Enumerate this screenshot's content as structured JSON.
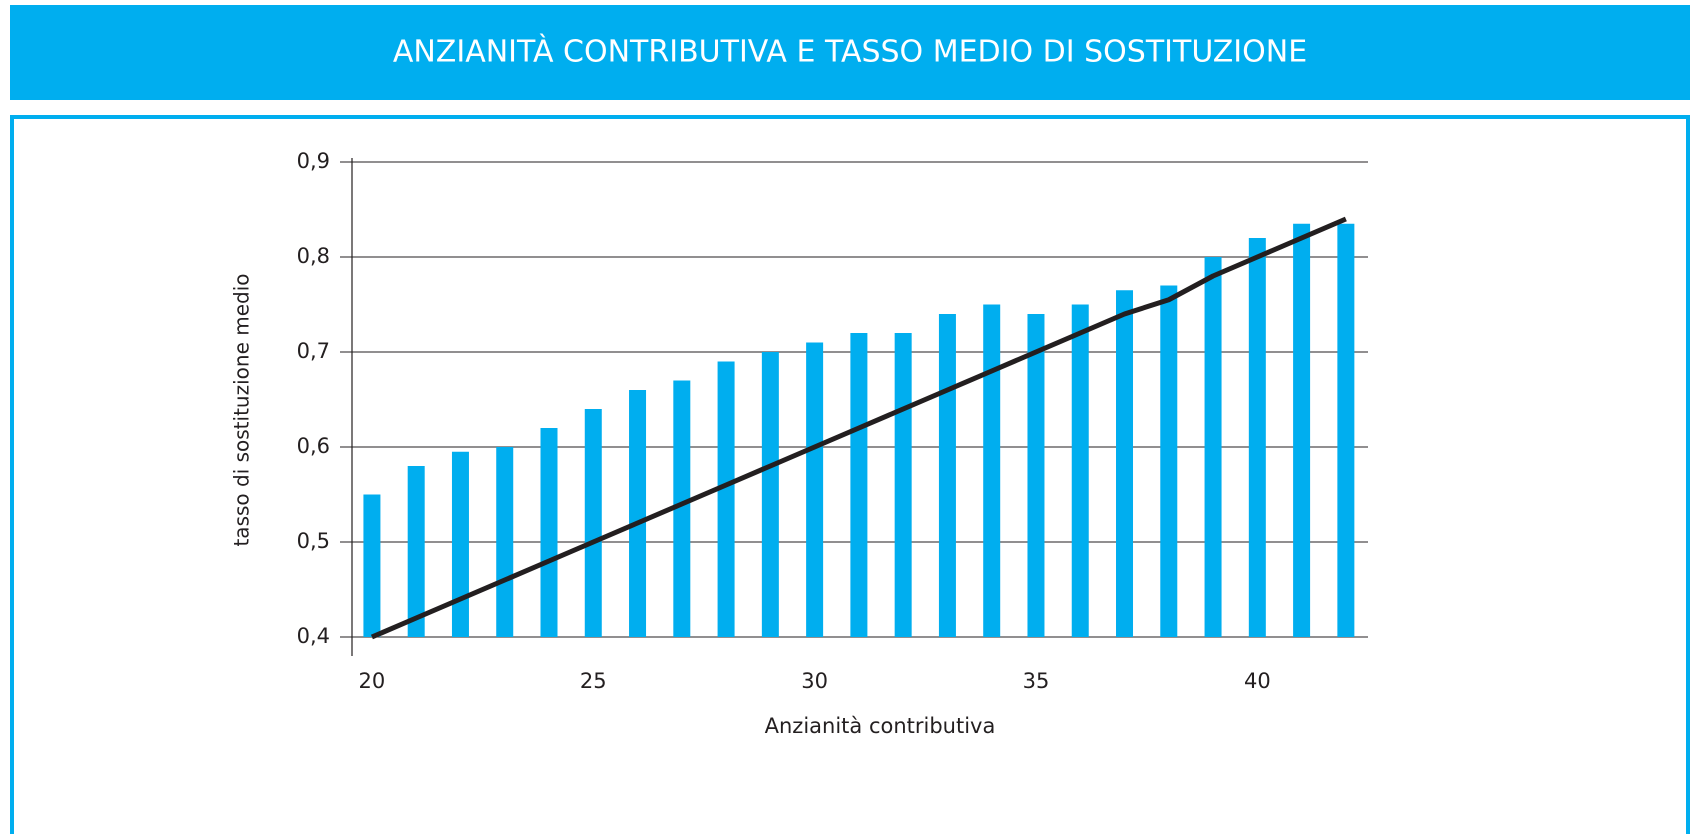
{
  "chart_data": {
    "type": "bar-line",
    "title": "ANZIANITÀ CONTRIBUTIVA E TASSO MEDIO DI SOSTITUZIONE",
    "x_label": "Anzianità contributiva",
    "y_label": "tasso di sostituzione medio",
    "x": [
      20,
      21,
      22,
      23,
      24,
      25,
      26,
      27,
      28,
      29,
      30,
      31,
      32,
      33,
      34,
      35,
      36,
      37,
      38,
      39,
      40,
      41,
      42
    ],
    "series": [
      {
        "type": "bar",
        "color": "#00aeef",
        "values": [
          0.55,
          0.58,
          0.595,
          0.6,
          0.62,
          0.64,
          0.66,
          0.67,
          0.69,
          0.7,
          0.71,
          0.72,
          0.72,
          0.74,
          0.75,
          0.74,
          0.75,
          0.765,
          0.77,
          0.8,
          0.82,
          0.835,
          0.835
        ]
      },
      {
        "type": "line",
        "color": "#231f20",
        "values": [
          0.4,
          0.42,
          0.44,
          0.46,
          0.48,
          0.5,
          0.52,
          0.54,
          0.56,
          0.58,
          0.6,
          0.62,
          0.64,
          0.66,
          0.68,
          0.7,
          0.72,
          0.74,
          0.755,
          0.78,
          0.8,
          0.82,
          0.84
        ]
      }
    ],
    "xlim": [
      19.55,
      42.5
    ],
    "xticks": [
      20,
      25,
      30,
      35,
      40
    ],
    "ylim": [
      0.4,
      0.9
    ],
    "yticks": [
      {
        "value": 0.4,
        "label": "0,4"
      },
      {
        "value": 0.5,
        "label": "0,5"
      },
      {
        "value": 0.6,
        "label": "0,6"
      },
      {
        "value": 0.7,
        "label": "0,7"
      },
      {
        "value": 0.8,
        "label": "0,8"
      },
      {
        "value": 0.9,
        "label": "0,9"
      }
    ],
    "grid": true
  }
}
